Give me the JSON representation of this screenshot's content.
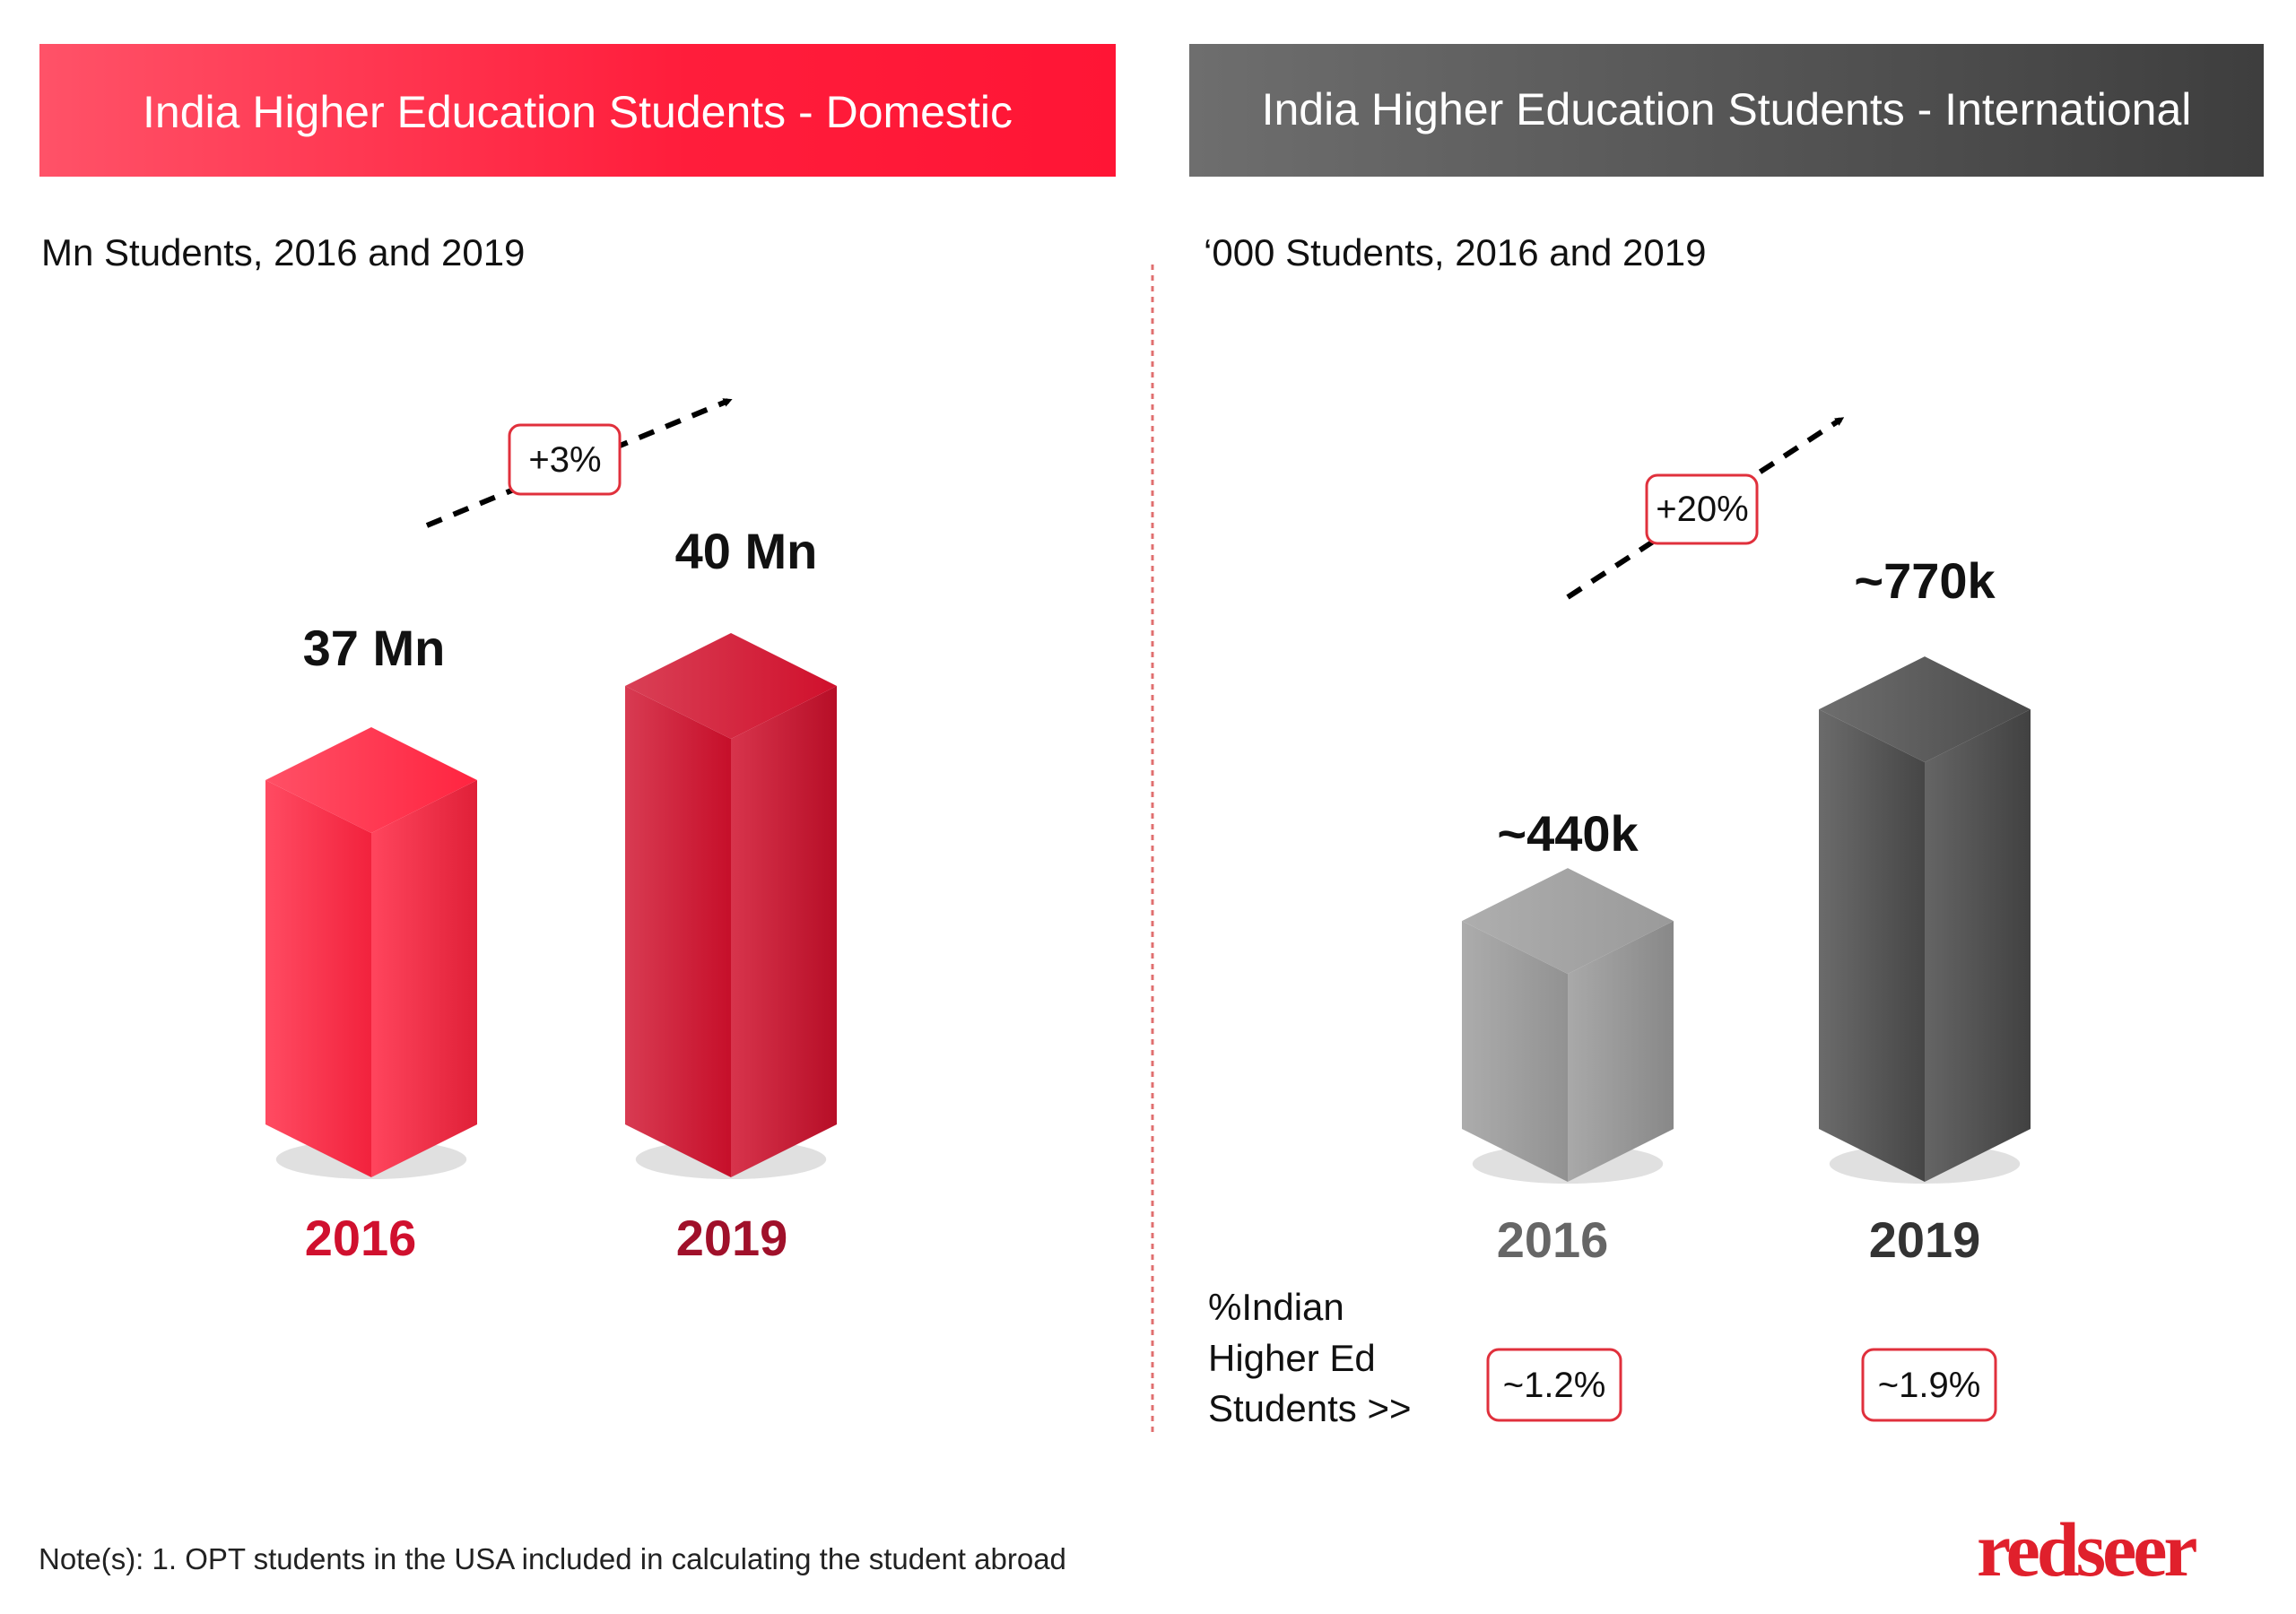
{
  "chart_data": [
    {
      "type": "bar",
      "title": "India Higher Education Students - Domestic",
      "subtitle": "Mn Students, 2016 and 2019",
      "categories": [
        "2016",
        "2019"
      ],
      "values": [
        37,
        40
      ],
      "data_labels": [
        "37 Mn",
        "40 Mn"
      ],
      "growth_label": "+3%",
      "colors": [
        "#ff2440",
        "#d0102c"
      ],
      "year_colors": [
        "#d0102e",
        "#a0102a"
      ],
      "header_colors": [
        "#ff5268",
        "#ff1535"
      ]
    },
    {
      "type": "bar",
      "title": "India Higher Education Students - International",
      "subtitle": "‘000 Students, 2016 and 2019",
      "categories": [
        "2016",
        "2019"
      ],
      "values": [
        440,
        770
      ],
      "data_labels": [
        "~440k",
        "~770k"
      ],
      "growth_label": "+20%",
      "colors": [
        "#9a9a9a",
        "#4a4a4a"
      ],
      "year_colors": [
        "#666666",
        "#333333"
      ],
      "header_colors": [
        "#6e6e6e",
        "#3e3e3e"
      ],
      "share_label": [
        "%Indian",
        "Higher Ed",
        "Students >>"
      ],
      "share_values": [
        "~1.2%",
        "~1.9%"
      ]
    }
  ],
  "note": "Note(s): 1. OPT students in the USA included in calculating the student abroad",
  "logo": "redseer"
}
